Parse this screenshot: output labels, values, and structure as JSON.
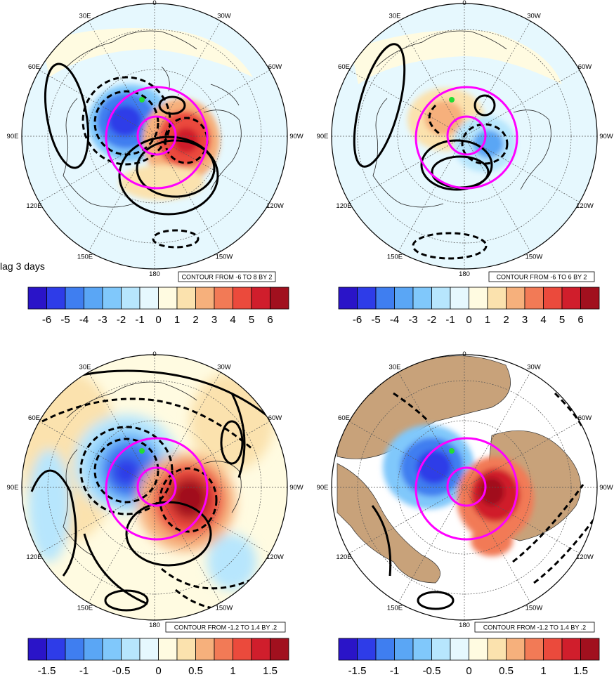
{
  "lag_label": "lag 3 days",
  "lon_labels": [
    "0",
    "30W",
    "60W",
    "90W",
    "120W",
    "150W",
    "180",
    "150E",
    "120E",
    "90E",
    "60E",
    "30E"
  ],
  "panels": [
    {
      "id": "top-left",
      "contour_note": "CONTOUR FROM -6 TO 8 BY 2",
      "colorbar_ticks": [
        "-6",
        "-5",
        "-4",
        "-3",
        "-2",
        "-1",
        "0",
        "1",
        "2",
        "3",
        "4",
        "5",
        "6"
      ],
      "land_shaded": false,
      "pattern": "strong-dipole"
    },
    {
      "id": "top-right",
      "contour_note": "CONTOUR FROM -6 TO 6 BY 2",
      "colorbar_ticks": [
        "-6",
        "-5",
        "-4",
        "-3",
        "-2",
        "-1",
        "0",
        "1",
        "2",
        "3",
        "4",
        "5",
        "6"
      ],
      "land_shaded": false,
      "pattern": "weak-dipole"
    },
    {
      "id": "bottom-left",
      "contour_note": "CONTOUR FROM -1.2 TO 1.4 BY .2",
      "colorbar_ticks": [
        "-1.5",
        "-1",
        "-0.5",
        "0",
        "0.5",
        "1",
        "1.5"
      ],
      "land_shaded": false,
      "pattern": "wave-train"
    },
    {
      "id": "bottom-right",
      "contour_note": "CONTOUR FROM -1.2 TO 1.4 BY .2",
      "colorbar_ticks": [
        "-1.5",
        "-1",
        "-0.5",
        "0",
        "0.5",
        "1",
        "1.5"
      ],
      "land_shaded": true,
      "pattern": "masked-dipole"
    }
  ],
  "colors": {
    "palette": [
      "#2a14c8",
      "#2e3ce8",
      "#3f7ef0",
      "#5aa6f5",
      "#80c8fb",
      "#b7e6fd",
      "#e6f8fe",
      "#fffbe1",
      "#fbe2ae",
      "#f6b07c",
      "#f27a56",
      "#eb4a3c",
      "#d01e2c",
      "#a1101e"
    ],
    "background_field": "#e6f8fe",
    "polar_circle": "#ff00ff",
    "land": "#c8a27a",
    "marker": "#22dd33"
  }
}
